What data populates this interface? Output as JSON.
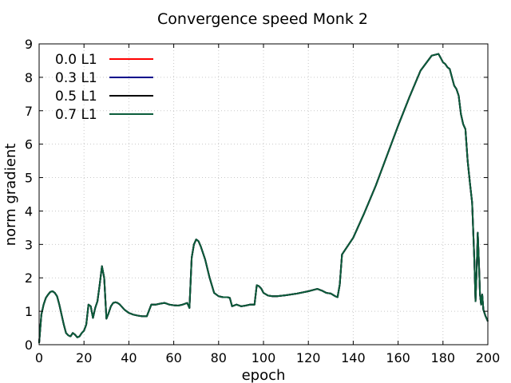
{
  "chart_data": {
    "type": "line",
    "title": "Convergence speed Monk 2",
    "xlabel": "epoch",
    "ylabel": "norm gradient",
    "xlim": [
      0,
      200
    ],
    "ylim": [
      0,
      9
    ],
    "xticks": [
      "0",
      "20",
      "40",
      "60",
      "80",
      "100",
      "120",
      "140",
      "160",
      "180",
      "200"
    ],
    "yticks": [
      "0",
      "1",
      "2",
      "3",
      "4",
      "5",
      "6",
      "7",
      "8",
      "9"
    ],
    "grid": true,
    "legend_position": "top-left",
    "x": [
      0,
      1,
      2,
      3,
      4,
      5,
      6,
      7,
      8,
      9,
      10,
      11,
      12,
      13,
      14,
      15,
      16,
      17,
      18,
      19,
      20,
      21,
      22,
      23,
      24,
      25,
      26,
      27,
      28,
      29,
      30,
      31,
      32,
      33,
      34,
      35,
      36,
      38,
      40,
      42,
      44,
      46,
      48,
      50,
      52,
      54,
      56,
      58,
      60,
      62,
      64,
      66,
      67,
      68,
      69,
      70,
      71,
      72,
      74,
      76,
      78,
      80,
      82,
      84,
      85,
      86,
      88,
      90,
      92,
      94,
      96,
      97,
      98,
      99,
      100,
      102,
      104,
      106,
      110,
      115,
      120,
      124,
      126,
      128,
      130,
      132,
      133,
      134,
      135,
      140,
      145,
      150,
      155,
      160,
      165,
      170,
      175,
      178,
      179,
      180,
      181,
      182,
      183,
      184,
      185,
      186,
      187,
      188,
      189,
      190,
      191,
      192,
      193,
      194,
      194.5,
      195,
      195.5,
      196,
      196.5,
      197,
      197.5,
      198,
      199,
      200
    ],
    "series": [
      {
        "name": "0.0 L1",
        "color": "#ff0000",
        "values": [
          0.05,
          0.9,
          1.2,
          1.4,
          1.5,
          1.58,
          1.6,
          1.55,
          1.45,
          1.2,
          0.9,
          0.6,
          0.35,
          0.28,
          0.25,
          0.35,
          0.3,
          0.22,
          0.25,
          0.35,
          0.42,
          0.6,
          1.2,
          1.15,
          0.8,
          1.1,
          1.3,
          1.8,
          2.35,
          2.0,
          0.78,
          0.95,
          1.15,
          1.25,
          1.27,
          1.25,
          1.2,
          1.05,
          0.95,
          0.9,
          0.87,
          0.85,
          0.85,
          1.2,
          1.2,
          1.23,
          1.25,
          1.2,
          1.18,
          1.17,
          1.2,
          1.25,
          1.1,
          2.6,
          3.0,
          3.15,
          3.1,
          2.95,
          2.55,
          2.0,
          1.55,
          1.45,
          1.42,
          1.42,
          1.4,
          1.15,
          1.2,
          1.15,
          1.17,
          1.2,
          1.2,
          1.78,
          1.75,
          1.68,
          1.55,
          1.47,
          1.45,
          1.45,
          1.48,
          1.53,
          1.6,
          1.67,
          1.62,
          1.55,
          1.53,
          1.45,
          1.42,
          1.8,
          2.7,
          3.2,
          3.95,
          4.75,
          5.65,
          6.55,
          7.4,
          8.2,
          8.65,
          8.7,
          8.58,
          8.45,
          8.4,
          8.3,
          8.25,
          8.0,
          7.75,
          7.65,
          7.45,
          6.9,
          6.6,
          6.45,
          5.5,
          4.85,
          4.25,
          2.5,
          1.3,
          2.2,
          3.35,
          2.5,
          1.5,
          1.2,
          1.5,
          1.05,
          0.85,
          0.7
        ]
      },
      {
        "name": "0.3 L1",
        "color": "#00008b",
        "values": [
          0.05,
          0.9,
          1.2,
          1.4,
          1.5,
          1.58,
          1.6,
          1.55,
          1.45,
          1.2,
          0.9,
          0.6,
          0.35,
          0.28,
          0.25,
          0.35,
          0.3,
          0.22,
          0.25,
          0.35,
          0.42,
          0.6,
          1.2,
          1.15,
          0.8,
          1.1,
          1.3,
          1.8,
          2.35,
          2.0,
          0.78,
          0.95,
          1.15,
          1.25,
          1.27,
          1.25,
          1.2,
          1.05,
          0.95,
          0.9,
          0.87,
          0.85,
          0.85,
          1.2,
          1.2,
          1.23,
          1.25,
          1.2,
          1.18,
          1.17,
          1.2,
          1.25,
          1.1,
          2.6,
          3.0,
          3.15,
          3.1,
          2.95,
          2.55,
          2.0,
          1.55,
          1.45,
          1.42,
          1.42,
          1.4,
          1.15,
          1.2,
          1.15,
          1.17,
          1.2,
          1.2,
          1.78,
          1.75,
          1.68,
          1.55,
          1.47,
          1.45,
          1.45,
          1.48,
          1.53,
          1.6,
          1.67,
          1.62,
          1.55,
          1.53,
          1.45,
          1.42,
          1.8,
          2.7,
          3.2,
          3.95,
          4.75,
          5.65,
          6.55,
          7.4,
          8.2,
          8.65,
          8.7,
          8.58,
          8.45,
          8.4,
          8.3,
          8.25,
          8.0,
          7.75,
          7.65,
          7.45,
          6.9,
          6.6,
          6.45,
          5.5,
          4.85,
          4.25,
          2.5,
          1.3,
          2.2,
          3.35,
          2.5,
          1.5,
          1.2,
          1.5,
          1.05,
          0.85,
          0.7
        ]
      },
      {
        "name": "0.5 L1",
        "color": "#000000",
        "values": [
          0.05,
          0.9,
          1.2,
          1.4,
          1.5,
          1.58,
          1.6,
          1.55,
          1.45,
          1.2,
          0.9,
          0.6,
          0.35,
          0.28,
          0.25,
          0.35,
          0.3,
          0.22,
          0.25,
          0.35,
          0.42,
          0.6,
          1.2,
          1.15,
          0.8,
          1.1,
          1.3,
          1.8,
          2.35,
          2.0,
          0.78,
          0.95,
          1.15,
          1.25,
          1.27,
          1.25,
          1.2,
          1.05,
          0.95,
          0.9,
          0.87,
          0.85,
          0.85,
          1.2,
          1.2,
          1.23,
          1.25,
          1.2,
          1.18,
          1.17,
          1.2,
          1.25,
          1.1,
          2.6,
          3.0,
          3.15,
          3.1,
          2.95,
          2.55,
          2.0,
          1.55,
          1.45,
          1.42,
          1.42,
          1.4,
          1.15,
          1.2,
          1.15,
          1.17,
          1.2,
          1.2,
          1.78,
          1.75,
          1.68,
          1.55,
          1.47,
          1.45,
          1.45,
          1.48,
          1.53,
          1.6,
          1.67,
          1.62,
          1.55,
          1.53,
          1.45,
          1.42,
          1.8,
          2.7,
          3.2,
          3.95,
          4.75,
          5.65,
          6.55,
          7.4,
          8.2,
          8.65,
          8.7,
          8.58,
          8.45,
          8.4,
          8.3,
          8.25,
          8.0,
          7.75,
          7.65,
          7.45,
          6.9,
          6.6,
          6.45,
          5.5,
          4.85,
          4.25,
          2.5,
          1.3,
          2.2,
          3.35,
          2.5,
          1.5,
          1.2,
          1.5,
          1.05,
          0.85,
          0.7
        ]
      },
      {
        "name": "0.7 L1",
        "color": "#0b5d3b",
        "values": [
          0.05,
          0.9,
          1.2,
          1.4,
          1.5,
          1.58,
          1.6,
          1.55,
          1.45,
          1.2,
          0.9,
          0.6,
          0.35,
          0.28,
          0.25,
          0.35,
          0.3,
          0.22,
          0.25,
          0.35,
          0.42,
          0.6,
          1.2,
          1.15,
          0.8,
          1.1,
          1.3,
          1.8,
          2.35,
          2.0,
          0.78,
          0.95,
          1.15,
          1.25,
          1.27,
          1.25,
          1.2,
          1.05,
          0.95,
          0.9,
          0.87,
          0.85,
          0.85,
          1.2,
          1.2,
          1.23,
          1.25,
          1.2,
          1.18,
          1.17,
          1.2,
          1.25,
          1.1,
          2.6,
          3.0,
          3.15,
          3.1,
          2.95,
          2.55,
          2.0,
          1.55,
          1.45,
          1.42,
          1.42,
          1.4,
          1.15,
          1.2,
          1.15,
          1.17,
          1.2,
          1.2,
          1.78,
          1.75,
          1.68,
          1.55,
          1.47,
          1.45,
          1.45,
          1.48,
          1.53,
          1.6,
          1.67,
          1.62,
          1.55,
          1.53,
          1.45,
          1.42,
          1.8,
          2.7,
          3.2,
          3.95,
          4.75,
          5.65,
          6.55,
          7.4,
          8.2,
          8.65,
          8.7,
          8.58,
          8.45,
          8.4,
          8.3,
          8.25,
          8.0,
          7.75,
          7.65,
          7.45,
          6.9,
          6.6,
          6.45,
          5.5,
          4.85,
          4.25,
          2.5,
          1.3,
          2.2,
          3.35,
          2.5,
          1.5,
          1.2,
          1.5,
          1.05,
          0.85,
          0.7
        ]
      }
    ]
  }
}
